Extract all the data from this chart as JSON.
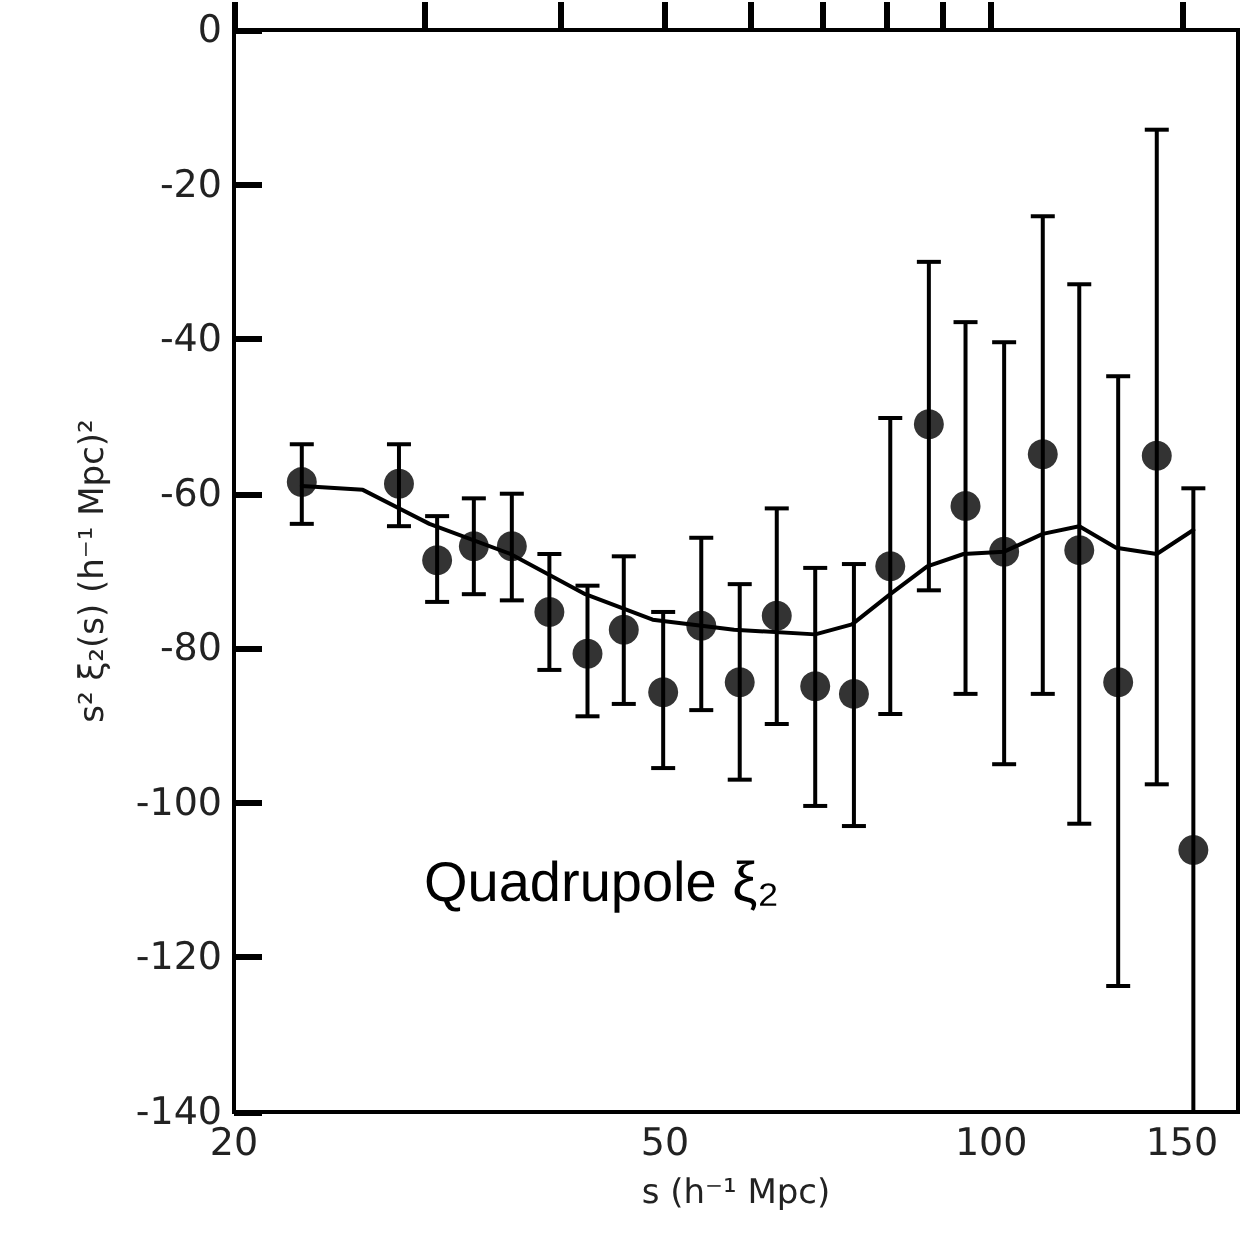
{
  "chart_data": {
    "type": "scatter",
    "xlabel": "s (h⁻¹ Mpc)",
    "ylabel": "s² ξ₂(s) (h⁻¹ Mpc)²",
    "annotations": [
      "Quadrupole ξ₂"
    ],
    "log": "x",
    "grid": false,
    "marker": "circle",
    "xlim": [
      20,
      169
    ],
    "xticks": [
      20,
      {
        "value": 30,
        "label": null
      },
      {
        "value": 40,
        "label": null
      },
      50,
      {
        "value": 60,
        "label": null
      },
      {
        "value": 70,
        "label": null
      },
      {
        "value": 80,
        "label": null
      },
      {
        "value": 90,
        "label": null
      },
      100,
      150
    ],
    "ylim": [
      -140,
      0
    ],
    "yticks": [
      -140,
      -120,
      -100,
      -80,
      -60,
      -40,
      -20,
      0
    ],
    "series": [
      {
        "type": "scatter",
        "color": "#000000",
        "x": [
          23.1,
          28.4,
          30.8,
          33.3,
          36.1,
          39.1,
          42.4,
          45.8,
          49.8,
          54.0,
          58.6,
          63.4,
          68.8,
          74.7,
          80.7,
          87.6,
          94.7,
          102.8,
          111.6,
          120.6,
          131,
          142.2,
          153.7
        ],
        "values": [
          -58.5,
          -58.7,
          -68.6,
          -66.8,
          -66.8,
          -75.3,
          -80.7,
          -77.6,
          -85.7,
          -77.1,
          -84.4,
          -75.8,
          -84.9,
          -85.9,
          -69.4,
          -51.0,
          -61.6,
          -67.5,
          -54.9,
          -67.3,
          -84.4,
          -55.1,
          -106.1
        ],
        "errors": [
          [
            -63.9,
            -53.6
          ],
          [
            -64.2,
            -53.6
          ],
          [
            -74.0,
            -62.9
          ],
          [
            -73.0,
            -60.6
          ],
          [
            -73.8,
            -60.0
          ],
          [
            -82.8,
            -67.8
          ],
          [
            -88.8,
            -71.9
          ],
          [
            -87.2,
            -68.1
          ],
          [
            -95.5,
            -75.3
          ],
          [
            -88.0,
            -65.7
          ],
          [
            -97.0,
            -71.7
          ],
          [
            -89.8,
            -61.9
          ],
          [
            -100.4,
            -69.6
          ],
          [
            -103.0,
            -69.1
          ],
          [
            -88.5,
            -50.2
          ],
          [
            -72.5,
            -30.0
          ],
          [
            -85.9,
            -37.8
          ],
          [
            -95.0,
            -40.4
          ],
          [
            -85.9,
            -24.1
          ],
          [
            -102.7,
            -32.9
          ],
          [
            -123.7,
            -44.8
          ],
          [
            -97.6,
            -12.9
          ],
          [
            -140,
            -59.3
          ]
        ]
      },
      {
        "type": "line",
        "color": "#000000",
        "marker": "none",
        "x": [
          23.1,
          26.3,
          30.3,
          36.0,
          42.2,
          48.7,
          57.9,
          68.8,
          74.4,
          80.7,
          87.3,
          94.3,
          102.8,
          111.6,
          120.6,
          130.4,
          142.2,
          153.7
        ],
        "values": [
          -59.0,
          -59.5,
          -63.9,
          -67.8,
          -73.0,
          -76.3,
          -77.6,
          -78.2,
          -76.9,
          -73.0,
          -69.4,
          -67.8,
          -67.5,
          -65.2,
          -64.2,
          -67.0,
          -67.8,
          -64.7
        ]
      }
    ]
  }
}
